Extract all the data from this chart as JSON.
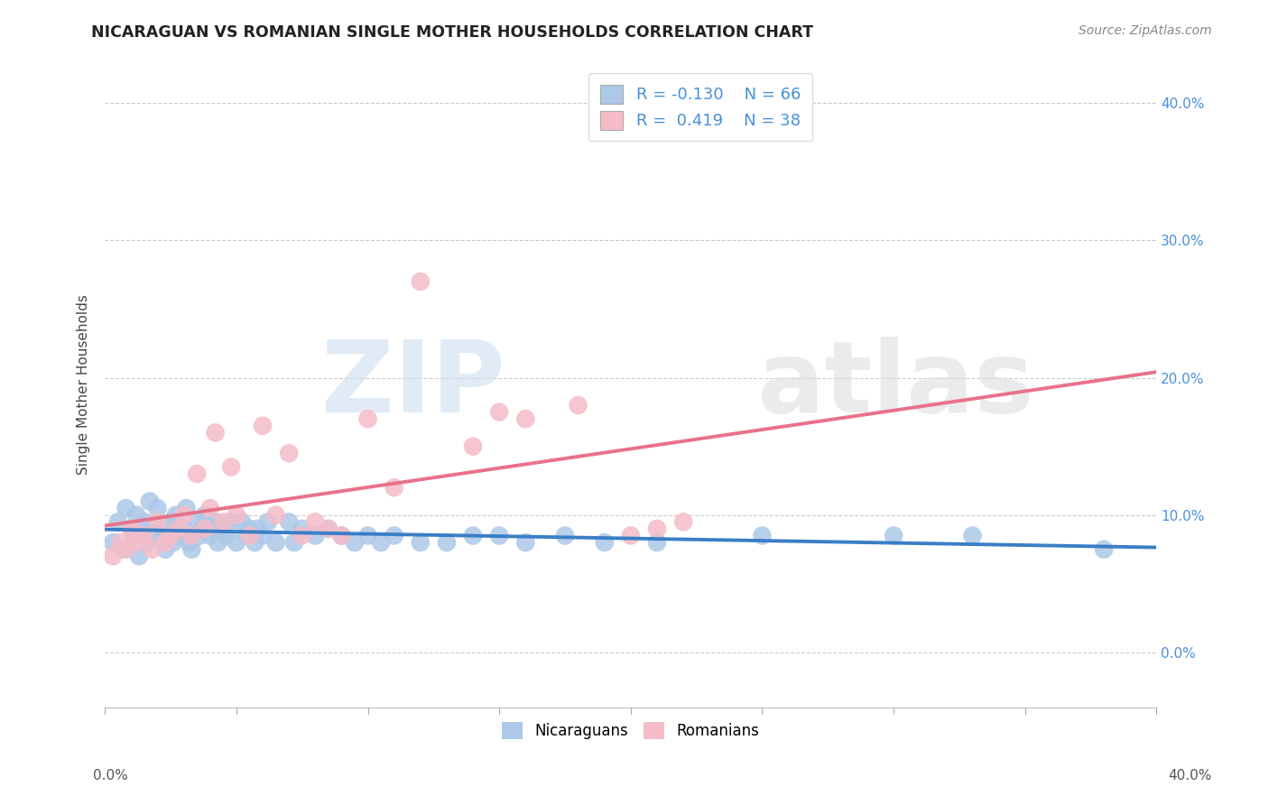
{
  "title": "NICARAGUAN VS ROMANIAN SINGLE MOTHER HOUSEHOLDS CORRELATION CHART",
  "source": "Source: ZipAtlas.com",
  "ylabel": "Single Mother Households",
  "legend_labels": [
    "Nicaraguans",
    "Romanians"
  ],
  "blue_R": -0.13,
  "blue_N": 66,
  "pink_R": 0.419,
  "pink_N": 38,
  "blue_color": "#adc8e8",
  "pink_color": "#f5bcc8",
  "blue_line_color": "#3a7ec6",
  "pink_line_color": "#e8728a",
  "trendline_color_dashed": "#cccccc",
  "xlim": [
    0.0,
    40.0
  ],
  "ylim": [
    -4.0,
    43.0
  ],
  "yticks": [
    0.0,
    10.0,
    20.0,
    30.0,
    40.0
  ],
  "blue_scatter_x": [
    0.3,
    0.5,
    0.7,
    0.8,
    1.0,
    1.1,
    1.2,
    1.3,
    1.5,
    1.6,
    1.7,
    1.8,
    2.0,
    2.1,
    2.2,
    2.3,
    2.5,
    2.6,
    2.7,
    2.8,
    3.0,
    3.1,
    3.2,
    3.3,
    3.5,
    3.6,
    3.7,
    3.8,
    4.0,
    4.1,
    4.2,
    4.3,
    4.5,
    4.6,
    4.8,
    5.0,
    5.2,
    5.4,
    5.5,
    5.7,
    5.8,
    6.0,
    6.2,
    6.5,
    7.0,
    7.2,
    7.5,
    8.0,
    8.5,
    9.0,
    9.5,
    10.0,
    10.5,
    11.0,
    12.0,
    13.0,
    14.0,
    15.0,
    16.0,
    17.5,
    19.0,
    21.0,
    25.0,
    30.0,
    33.0,
    38.0
  ],
  "blue_scatter_y": [
    8.0,
    9.5,
    7.5,
    10.5,
    9.0,
    8.5,
    10.0,
    7.0,
    9.5,
    8.0,
    11.0,
    9.0,
    10.5,
    8.5,
    9.0,
    7.5,
    9.5,
    8.0,
    10.0,
    8.5,
    9.0,
    10.5,
    8.0,
    7.5,
    9.5,
    8.5,
    9.0,
    10.0,
    8.5,
    9.0,
    9.5,
    8.0,
    9.0,
    8.5,
    9.5,
    8.0,
    9.5,
    8.5,
    9.0,
    8.0,
    9.0,
    8.5,
    9.5,
    8.0,
    9.5,
    8.0,
    9.0,
    8.5,
    9.0,
    8.5,
    8.0,
    8.5,
    8.0,
    8.5,
    8.0,
    8.0,
    8.5,
    8.5,
    8.0,
    8.5,
    8.0,
    8.0,
    8.5,
    8.5,
    8.5,
    7.5
  ],
  "pink_scatter_x": [
    0.3,
    0.6,
    0.8,
    1.0,
    1.2,
    1.5,
    1.8,
    2.0,
    2.3,
    2.5,
    2.8,
    3.0,
    3.3,
    3.5,
    3.8,
    4.0,
    4.2,
    4.5,
    4.8,
    5.0,
    5.5,
    6.0,
    6.5,
    7.0,
    7.5,
    8.0,
    8.5,
    9.0,
    10.0,
    11.0,
    12.0,
    14.0,
    15.0,
    16.0,
    18.0,
    20.0,
    21.0,
    22.0
  ],
  "pink_scatter_y": [
    7.0,
    8.0,
    7.5,
    9.0,
    8.0,
    8.5,
    7.5,
    9.5,
    8.0,
    8.5,
    9.0,
    10.0,
    8.5,
    13.0,
    9.0,
    10.5,
    16.0,
    9.5,
    13.5,
    10.0,
    8.5,
    16.5,
    10.0,
    14.5,
    8.5,
    9.5,
    9.0,
    8.5,
    17.0,
    12.0,
    27.0,
    15.0,
    17.5,
    17.0,
    18.0,
    8.5,
    9.0,
    9.5
  ]
}
